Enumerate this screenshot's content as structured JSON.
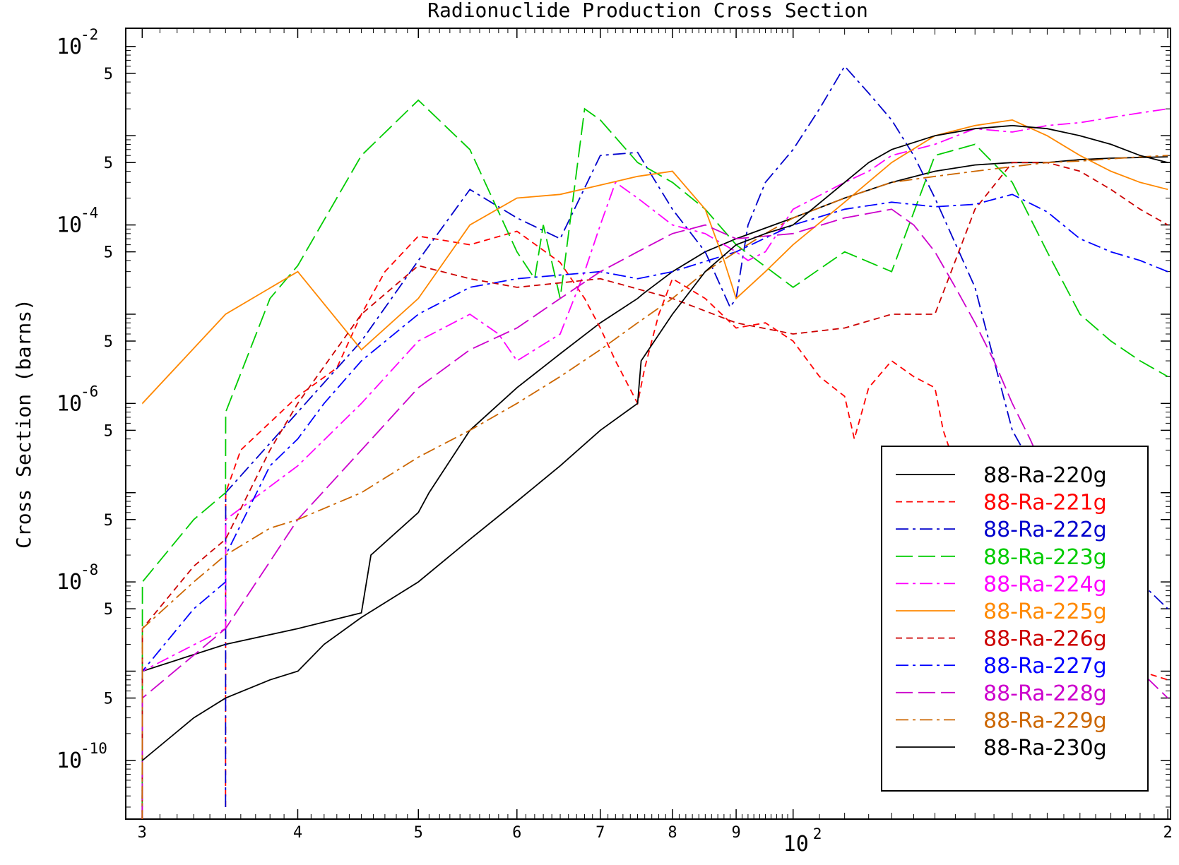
{
  "chart_data": {
    "type": "line",
    "title": "Radionuclide Production Cross Section",
    "xlabel": "",
    "ylabel": "Cross Section (barns)",
    "x_scale": "log",
    "y_scale": "log",
    "xlim": [
      29.1,
      201
    ],
    "ylim": [
      2.2e-11,
      0.016
    ],
    "x_ticks": [
      {
        "value": 30,
        "label": "3"
      },
      {
        "value": 40,
        "label": "4"
      },
      {
        "value": 50,
        "label": "5"
      },
      {
        "value": 60,
        "label": "6"
      },
      {
        "value": 70,
        "label": "7"
      },
      {
        "value": 80,
        "label": "8"
      },
      {
        "value": 90,
        "label": "9"
      },
      {
        "value": 100,
        "label": "10",
        "exponent": "2"
      },
      {
        "value": 200,
        "label": "2"
      }
    ],
    "y_ticks": [
      {
        "value": 1e-10,
        "label": "10",
        "exponent": "-10"
      },
      {
        "value": 5e-10,
        "label": "5"
      },
      {
        "value": 1e-09,
        "label": ""
      },
      {
        "value": 5e-09,
        "label": "5"
      },
      {
        "value": 1e-08,
        "label": "10",
        "exponent": "-8"
      },
      {
        "value": 5e-08,
        "label": "5"
      },
      {
        "value": 1e-07,
        "label": ""
      },
      {
        "value": 5e-07,
        "label": "5"
      },
      {
        "value": 1e-06,
        "label": "10",
        "exponent": "-6"
      },
      {
        "value": 5e-06,
        "label": "5"
      },
      {
        "value": 1e-05,
        "label": ""
      },
      {
        "value": 5e-05,
        "label": "5"
      },
      {
        "value": 0.0001,
        "label": "10",
        "exponent": "-4"
      },
      {
        "value": 0.0005,
        "label": "5"
      },
      {
        "value": 0.001,
        "label": ""
      },
      {
        "value": 0.005,
        "label": "5"
      },
      {
        "value": 0.01,
        "label": "10",
        "exponent": "-2"
      }
    ],
    "legend_position": "bottom-right",
    "series": [
      {
        "name": "88-Ra-220g",
        "color": "#000000",
        "dash": "solid",
        "x": [
          30,
          30.01,
          35,
          40,
          45,
          45.8,
          50,
          51,
          55,
          60,
          65,
          70,
          75,
          75.8,
          80,
          85,
          90,
          100,
          110,
          120,
          130,
          140,
          150,
          160,
          170,
          180,
          200
        ],
        "y": [
          8e-10,
          1e-09,
          2e-09,
          3e-09,
          4.5e-09,
          2e-08,
          6e-08,
          1e-07,
          5e-07,
          1.5e-06,
          3.6e-06,
          8e-06,
          1.5e-05,
          1.7e-05,
          3e-05,
          5e-05,
          7e-05,
          0.00012,
          0.0002,
          0.0003,
          0.0004,
          0.00047,
          0.0005,
          0.0005,
          0.00054,
          0.00056,
          0.00058
        ]
      },
      {
        "name": "88-Ra-221g",
        "color": "#ff0000",
        "dash": "dash",
        "x": [
          35,
          35.01,
          36,
          40,
          43,
          45,
          47,
          50,
          55,
          60,
          65,
          68,
          70,
          72,
          75,
          76,
          78,
          80,
          85,
          90,
          95,
          100,
          105,
          110,
          112,
          115,
          120,
          125,
          130,
          132,
          135,
          140,
          145,
          150,
          155,
          160,
          170,
          180,
          190,
          200
        ],
        "y": [
          3e-11,
          1e-07,
          3e-07,
          1.2e-06,
          2.5e-06,
          1e-05,
          3e-05,
          7.5e-05,
          6e-05,
          8.5e-05,
          3.8e-05,
          1.5e-05,
          7e-06,
          3e-06,
          1e-06,
          2.5e-06,
          1e-05,
          2.5e-05,
          1.5e-05,
          7e-06,
          8e-06,
          5e-06,
          2e-06,
          1.2e-06,
          4e-07,
          1.5e-06,
          3e-06,
          2e-06,
          1.5e-06,
          5e-07,
          2e-07,
          5e-08,
          2e-08,
          1e-08,
          5e-09,
          3e-09,
          2e-09,
          1.2e-09,
          1e-09,
          8e-10
        ]
      },
      {
        "name": "88-Ra-222g",
        "color": "#0000cc",
        "dash": "dashdot",
        "x": [
          35,
          35.01,
          40,
          45,
          50,
          55,
          60,
          65,
          70,
          75,
          80,
          85,
          89,
          90,
          92,
          95,
          100,
          105,
          110,
          115,
          120,
          125,
          130,
          140,
          150,
          160,
          170,
          180,
          190,
          200
        ],
        "y": [
          3e-11,
          1e-07,
          8e-07,
          5e-06,
          4e-05,
          0.00025,
          0.00012,
          7e-05,
          0.0006,
          0.00065,
          0.00015,
          5e-05,
          1.2e-05,
          1.5e-05,
          0.0001,
          0.0003,
          0.0007,
          0.002,
          0.006,
          0.003,
          0.0015,
          0.0006,
          0.0002,
          2e-05,
          5e-07,
          1e-07,
          5e-08,
          2e-08,
          1e-08,
          5e-09
        ]
      },
      {
        "name": "88-Ra-223g",
        "color": "#00cc00",
        "dash": "longdash",
        "x": [
          30,
          30.01,
          33,
          35,
          35.01,
          38,
          40,
          45,
          50,
          55,
          60,
          62,
          63,
          65,
          68,
          70,
          75,
          80,
          85,
          90,
          100,
          110,
          120,
          130,
          140,
          150,
          160,
          170,
          180,
          190,
          200
        ],
        "y": [
          3e-11,
          1e-08,
          5e-08,
          1e-07,
          8e-07,
          1.5e-05,
          3.5e-05,
          0.0006,
          0.0025,
          0.0007,
          5e-05,
          2.5e-05,
          0.0001,
          1.5e-05,
          0.002,
          0.0015,
          0.0005,
          0.0003,
          0.00015,
          6e-05,
          2e-05,
          5e-05,
          3e-05,
          0.0006,
          0.0008,
          0.0003,
          5e-05,
          1e-05,
          5e-06,
          3e-06,
          2e-06
        ]
      },
      {
        "name": "88-Ra-224g",
        "color": "#ff00ff",
        "dash": "dashdot",
        "x": [
          30,
          30.01,
          35,
          35.01,
          40,
          45,
          50,
          55,
          58,
          60,
          65,
          68,
          70,
          72,
          75,
          80,
          85,
          90,
          92,
          95,
          100,
          110,
          115,
          120,
          130,
          140,
          150,
          160,
          170,
          180,
          190,
          200
        ],
        "y": [
          2e-11,
          1e-09,
          3e-09,
          5e-08,
          2e-07,
          1e-06,
          5e-06,
          1e-05,
          6e-06,
          3e-06,
          6e-06,
          3e-05,
          0.0001,
          0.0003,
          0.0002,
          0.0001,
          8e-05,
          5e-05,
          4e-05,
          5e-05,
          0.00015,
          0.0003,
          0.0004,
          0.0006,
          0.0008,
          0.0012,
          0.0011,
          0.0013,
          0.0014,
          0.0016,
          0.0018,
          0.002
        ]
      },
      {
        "name": "88-Ra-225g",
        "color": "#ff8800",
        "dash": "solid",
        "x": [
          30,
          30.01,
          35,
          40,
          45,
          50,
          55,
          60,
          65,
          70,
          75,
          80,
          85,
          88,
          90,
          95,
          100,
          110,
          120,
          130,
          140,
          150,
          160,
          170,
          180,
          190,
          200
        ],
        "y": [
          1e-06,
          1e-06,
          1e-05,
          3e-05,
          4e-06,
          1.5e-05,
          0.0001,
          0.0002,
          0.00022,
          0.00028,
          0.00035,
          0.0004,
          0.00015,
          4e-05,
          1.5e-05,
          3e-05,
          6e-05,
          0.00018,
          0.0005,
          0.001,
          0.0013,
          0.0015,
          0.001,
          0.0006,
          0.0004,
          0.0003,
          0.00025
        ]
      },
      {
        "name": "88-Ra-226g",
        "color": "#cc0000",
        "dash": "dash",
        "x": [
          30,
          30.01,
          33,
          35,
          38,
          40,
          45,
          50,
          55,
          60,
          70,
          80,
          90,
          100,
          110,
          120,
          130,
          140,
          150,
          160,
          170,
          180,
          190,
          200
        ],
        "y": [
          2e-11,
          3e-09,
          1.5e-08,
          3e-08,
          3e-07,
          1e-06,
          1e-05,
          3.5e-05,
          2.5e-05,
          2e-05,
          2.5e-05,
          1.5e-05,
          8e-06,
          6e-06,
          7e-06,
          1e-05,
          1e-05,
          0.00015,
          0.0005,
          0.0005,
          0.0004,
          0.00025,
          0.00015,
          0.0001
        ]
      },
      {
        "name": "88-Ra-227g",
        "color": "#0000ff",
        "dash": "dashdot",
        "x": [
          30,
          30.01,
          33,
          35,
          35.01,
          38,
          40,
          42,
          45,
          50,
          55,
          60,
          70,
          75,
          80,
          90,
          100,
          110,
          120,
          130,
          140,
          150,
          160,
          170,
          180,
          190,
          200
        ],
        "y": [
          2e-11,
          1e-09,
          5e-09,
          1e-08,
          2e-08,
          2e-07,
          4e-07,
          1e-06,
          3e-06,
          1e-05,
          2e-05,
          2.5e-05,
          3e-05,
          2.5e-05,
          3e-05,
          5e-05,
          0.0001,
          0.00015,
          0.00018,
          0.00016,
          0.00017,
          0.00022,
          0.00014,
          7e-05,
          5e-05,
          4e-05,
          3e-05
        ]
      },
      {
        "name": "88-Ra-228g",
        "color": "#cc00cc",
        "dash": "longdash",
        "x": [
          30,
          30.01,
          35,
          40,
          45,
          50,
          55,
          60,
          65,
          70,
          75,
          80,
          85,
          90,
          100,
          110,
          120,
          125,
          130,
          135,
          140,
          145,
          150,
          155,
          160,
          165,
          170,
          175,
          180,
          190,
          200
        ],
        "y": [
          2e-11,
          5e-10,
          3e-09,
          5e-08,
          3e-07,
          1.5e-06,
          4e-06,
          7e-06,
          1.5e-05,
          3e-05,
          5e-05,
          8e-05,
          0.0001,
          7e-05,
          8e-05,
          0.00012,
          0.00015,
          0.0001,
          5e-05,
          2e-05,
          8e-06,
          3e-06,
          1e-06,
          4e-07,
          1.5e-07,
          5e-08,
          2e-08,
          8e-09,
          3e-09,
          1e-09,
          5e-10
        ]
      },
      {
        "name": "88-Ra-229g",
        "color": "#cc6600",
        "dash": "dashdot",
        "x": [
          30,
          30.01,
          33,
          35,
          38,
          40,
          45,
          50,
          55,
          60,
          65,
          70,
          75,
          80,
          85,
          90,
          95,
          100,
          110,
          120,
          130,
          140,
          150,
          160,
          170,
          180,
          190,
          200
        ],
        "y": [
          2e-11,
          3e-09,
          1e-08,
          2e-08,
          4e-08,
          5e-08,
          1e-07,
          2.5e-07,
          5e-07,
          1e-06,
          2e-06,
          4e-06,
          8e-06,
          1.5e-05,
          3e-05,
          5e-05,
          8e-05,
          0.00012,
          0.0002,
          0.0003,
          0.00035,
          0.0004,
          0.00045,
          0.0005,
          0.00052,
          0.00055,
          0.00058,
          0.0006
        ]
      },
      {
        "name": "88-Ra-230g",
        "color": "#000000",
        "dash": "solid",
        "x": [
          30,
          30.01,
          33,
          35,
          38,
          40,
          40.01,
          42,
          45,
          50,
          55,
          60,
          65,
          70,
          75,
          75.5,
          80,
          85,
          90,
          95,
          100,
          110,
          115,
          120,
          130,
          140,
          150,
          160,
          170,
          180,
          190,
          200
        ],
        "y": [
          1e-10,
          1e-10,
          3e-10,
          5e-10,
          8e-10,
          1e-09,
          1e-09,
          2e-09,
          4e-09,
          1e-08,
          3e-08,
          8e-08,
          2e-07,
          5e-07,
          1e-06,
          3e-06,
          1e-05,
          3e-05,
          6e-05,
          8e-05,
          0.0001,
          0.0003,
          0.0005,
          0.0007,
          0.001,
          0.0012,
          0.0013,
          0.0012,
          0.001,
          0.0008,
          0.0006,
          0.0005
        ]
      }
    ]
  }
}
